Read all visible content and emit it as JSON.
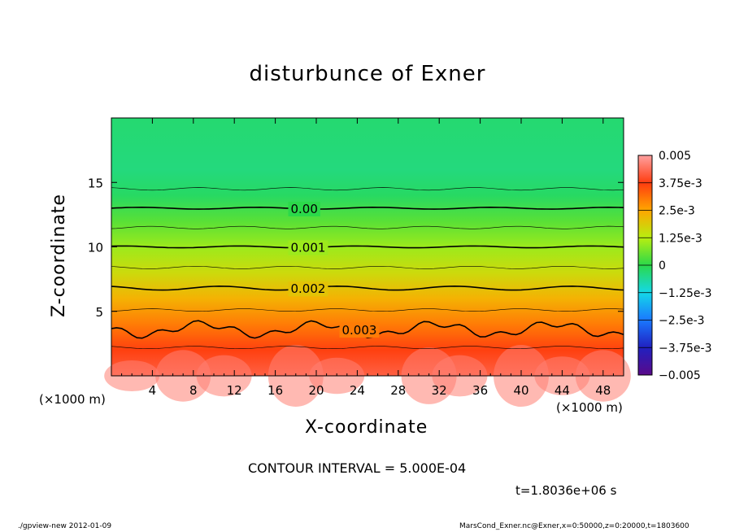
{
  "title": "disturbunce of Exner",
  "chart_data": {
    "type": "heatmap",
    "title": "disturbunce of Exner",
    "xlabel": "X-coordinate",
    "ylabel": "Z-coordinate",
    "x_unit_label": "(×1000 m)",
    "x_ticks": [
      4,
      8,
      12,
      16,
      20,
      24,
      28,
      32,
      36,
      40,
      44,
      48
    ],
    "x_tick_labels": [
      "4",
      "8",
      "12",
      "16",
      "20",
      "24",
      "28",
      "32",
      "36",
      "40",
      "44",
      "48"
    ],
    "y_ticks": [
      5,
      10,
      15
    ],
    "y_tick_labels": [
      "5",
      "10",
      "15"
    ],
    "xlim": [
      0,
      50
    ],
    "ylim": [
      0,
      20
    ],
    "colorbar": {
      "range": [
        -0.005,
        0.005
      ],
      "tick_labels": [
        "0.005",
        "3.75e-3",
        "2.5e-3",
        "1.25e-3",
        "0",
        "−1.25e-3",
        "−2.5e-3",
        "−3.75e-3",
        "−0.005"
      ]
    },
    "contours": [
      {
        "label": "0.00",
        "level": 0.0,
        "z": 13.0
      },
      {
        "label": "0.001",
        "level": 0.001,
        "z": 10.0
      },
      {
        "label": "0.002",
        "level": 0.002,
        "z": 6.8
      },
      {
        "label": "0.003",
        "level": 0.003,
        "z": 3.6
      }
    ],
    "field_profile": [
      {
        "z": 0,
        "value": 0.0042
      },
      {
        "z": 2,
        "value": 0.0037
      },
      {
        "z": 4,
        "value": 0.003
      },
      {
        "z": 6,
        "value": 0.0023
      },
      {
        "z": 8,
        "value": 0.0016
      },
      {
        "z": 10,
        "value": 0.001
      },
      {
        "z": 12,
        "value": 0.0004
      },
      {
        "z": 14,
        "value": -0.0002
      },
      {
        "z": 16,
        "value": -0.0004
      },
      {
        "z": 20,
        "value": -0.0003
      }
    ]
  },
  "contour_interval": "CONTOUR INTERVAL = 5.000E-04",
  "time_label": "t=1.8036e+06 s",
  "footer_left": "./gpview-new   2012-01-09",
  "footer_right": "MarsCond_Exner.nc@Exner,x=0:50000,z=0:20000,t=1803600"
}
